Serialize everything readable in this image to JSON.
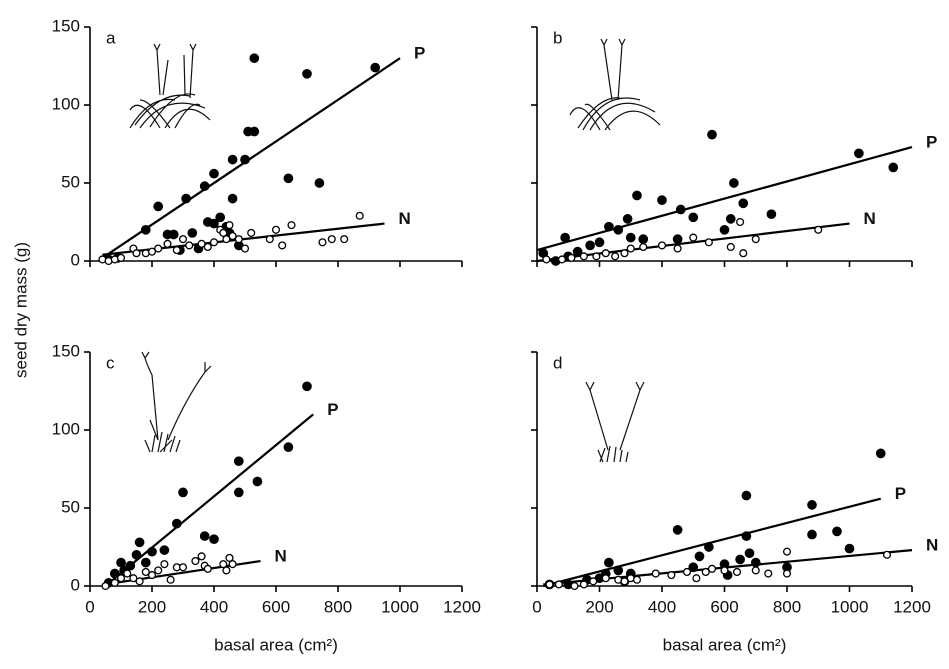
{
  "chart_data": [
    {
      "type": "scatter",
      "panel": "a",
      "ylabel": "seed dry mass (g)",
      "xlim": [
        0,
        1200
      ],
      "ylim": [
        0,
        150
      ],
      "xticks": [
        0,
        200,
        400,
        600,
        800,
        1000,
        1200
      ],
      "yticks": [
        0,
        50,
        100,
        150
      ],
      "x_tick_labels": false,
      "y_tick_labels": true,
      "series": [
        {
          "name": "P",
          "color": "#000000",
          "filled": true,
          "x": [
            60,
            90,
            180,
            220,
            250,
            270,
            290,
            310,
            330,
            350,
            370,
            380,
            400,
            400,
            420,
            440,
            450,
            460,
            460,
            480,
            500,
            510,
            530,
            530,
            640,
            700,
            740,
            920
          ],
          "values": [
            1,
            2,
            20,
            35,
            17,
            17,
            7,
            40,
            18,
            8,
            48,
            25,
            56,
            24,
            28,
            22,
            18,
            40,
            65,
            10,
            65,
            83,
            130,
            83,
            53,
            120,
            50,
            124
          ],
          "fit": {
            "x": [
              40,
              1000
            ],
            "y": [
              2,
              130
            ]
          }
        },
        {
          "name": "N",
          "color": "#000000",
          "filled": false,
          "x": [
            40,
            60,
            80,
            100,
            140,
            150,
            180,
            200,
            220,
            250,
            280,
            300,
            320,
            360,
            380,
            400,
            420,
            430,
            440,
            450,
            460,
            480,
            500,
            520,
            580,
            600,
            620,
            650,
            750,
            780,
            820,
            870
          ],
          "values": [
            1,
            0,
            1,
            2,
            8,
            5,
            5,
            6,
            8,
            11,
            7,
            14,
            10,
            11,
            9,
            12,
            20,
            18,
            14,
            23,
            16,
            14,
            8,
            18,
            14,
            20,
            10,
            23,
            12,
            14,
            14,
            29
          ],
          "fit": {
            "x": [
              40,
              950
            ],
            "y": [
              4,
              24
            ]
          }
        }
      ]
    },
    {
      "type": "scatter",
      "panel": "b",
      "xlim": [
        0,
        1200
      ],
      "ylim": [
        0,
        150
      ],
      "xticks": [
        0,
        200,
        400,
        600,
        800,
        1000,
        1200
      ],
      "yticks": [
        0,
        50,
        100,
        150
      ],
      "x_tick_labels": false,
      "y_tick_labels": false,
      "series": [
        {
          "name": "P",
          "color": "#000000",
          "filled": true,
          "x": [
            20,
            60,
            90,
            100,
            130,
            170,
            200,
            230,
            260,
            290,
            300,
            320,
            340,
            400,
            450,
            460,
            500,
            560,
            600,
            620,
            630,
            660,
            750,
            1030,
            1140
          ],
          "values": [
            5,
            0,
            15,
            3,
            6,
            10,
            12,
            22,
            20,
            27,
            15,
            42,
            14,
            39,
            14,
            33,
            28,
            81,
            20,
            27,
            50,
            37,
            30,
            69,
            60
          ],
          "fit": {
            "x": [
              0,
              1200
            ],
            "y": [
              7,
              73
            ]
          }
        },
        {
          "name": "N",
          "color": "#000000",
          "filled": false,
          "x": [
            30,
            80,
            110,
            150,
            190,
            220,
            250,
            280,
            300,
            340,
            400,
            450,
            500,
            550,
            620,
            650,
            660,
            700,
            900
          ],
          "values": [
            1,
            1,
            2,
            3,
            3,
            5,
            3,
            5,
            8,
            9,
            10,
            8,
            15,
            12,
            9,
            25,
            5,
            14,
            20
          ],
          "fit": {
            "x": [
              0,
              1000
            ],
            "y": [
              0,
              24
            ]
          }
        }
      ]
    },
    {
      "type": "scatter",
      "panel": "c",
      "xlabel": "basal area (cm²)",
      "xlim": [
        0,
        1200
      ],
      "ylim": [
        0,
        150
      ],
      "xticks": [
        0,
        200,
        400,
        600,
        800,
        1000,
        1200
      ],
      "yticks": [
        0,
        50,
        100,
        150
      ],
      "x_tick_labels": true,
      "y_tick_labels": true,
      "series": [
        {
          "name": "P",
          "color": "#000000",
          "filled": true,
          "x": [
            60,
            80,
            100,
            110,
            130,
            150,
            160,
            180,
            200,
            240,
            280,
            300,
            370,
            400,
            480,
            480,
            540,
            640,
            700
          ],
          "values": [
            2,
            8,
            15,
            10,
            13,
            20,
            28,
            15,
            22,
            23,
            40,
            60,
            32,
            30,
            80,
            60,
            67,
            89,
            128
          ],
          "fit": {
            "x": [
              50,
              720
            ],
            "y": [
              0,
              110
            ]
          }
        },
        {
          "name": "N",
          "color": "#000000",
          "filled": false,
          "x": [
            50,
            80,
            100,
            120,
            140,
            160,
            180,
            200,
            220,
            240,
            260,
            280,
            300,
            340,
            360,
            370,
            380,
            430,
            440,
            450,
            460
          ],
          "values": [
            0,
            2,
            5,
            8,
            5,
            3,
            9,
            7,
            10,
            14,
            4,
            12,
            12,
            16,
            19,
            13,
            11,
            14,
            10,
            18,
            14
          ],
          "fit": {
            "x": [
              80,
              550
            ],
            "y": [
              2,
              16
            ]
          }
        }
      ]
    },
    {
      "type": "scatter",
      "panel": "d",
      "xlabel": "basal area (cm²)",
      "xlim": [
        0,
        1200
      ],
      "ylim": [
        0,
        150
      ],
      "xticks": [
        0,
        200,
        400,
        600,
        800,
        1000,
        1200
      ],
      "yticks": [
        0,
        50,
        100,
        150
      ],
      "x_tick_labels": true,
      "y_tick_labels": false,
      "series": [
        {
          "name": "P",
          "color": "#000000",
          "filled": true,
          "x": [
            40,
            100,
            160,
            200,
            220,
            230,
            260,
            280,
            300,
            450,
            500,
            520,
            550,
            600,
            610,
            650,
            670,
            670,
            680,
            700,
            800,
            880,
            880,
            960,
            1000,
            1100
          ],
          "values": [
            1,
            1,
            4,
            5,
            8,
            15,
            10,
            3,
            8,
            36,
            12,
            19,
            25,
            14,
            7,
            17,
            58,
            32,
            21,
            15,
            12,
            52,
            33,
            35,
            24,
            85
          ],
          "fit": {
            "x": [
              20,
              1100
            ],
            "y": [
              0,
              56
            ]
          }
        },
        {
          "name": "N",
          "color": "#000000",
          "filled": false,
          "x": [
            40,
            70,
            120,
            150,
            180,
            220,
            260,
            280,
            300,
            320,
            380,
            430,
            480,
            510,
            540,
            560,
            600,
            640,
            700,
            740,
            800,
            800,
            1120
          ],
          "values": [
            1,
            1,
            0,
            1,
            3,
            5,
            4,
            3,
            5,
            4,
            8,
            7,
            9,
            5,
            9,
            11,
            10,
            9,
            10,
            8,
            8,
            22,
            20
          ],
          "fit": {
            "x": [
              20,
              1200
            ],
            "y": [
              1,
              23
            ]
          }
        }
      ]
    }
  ]
}
